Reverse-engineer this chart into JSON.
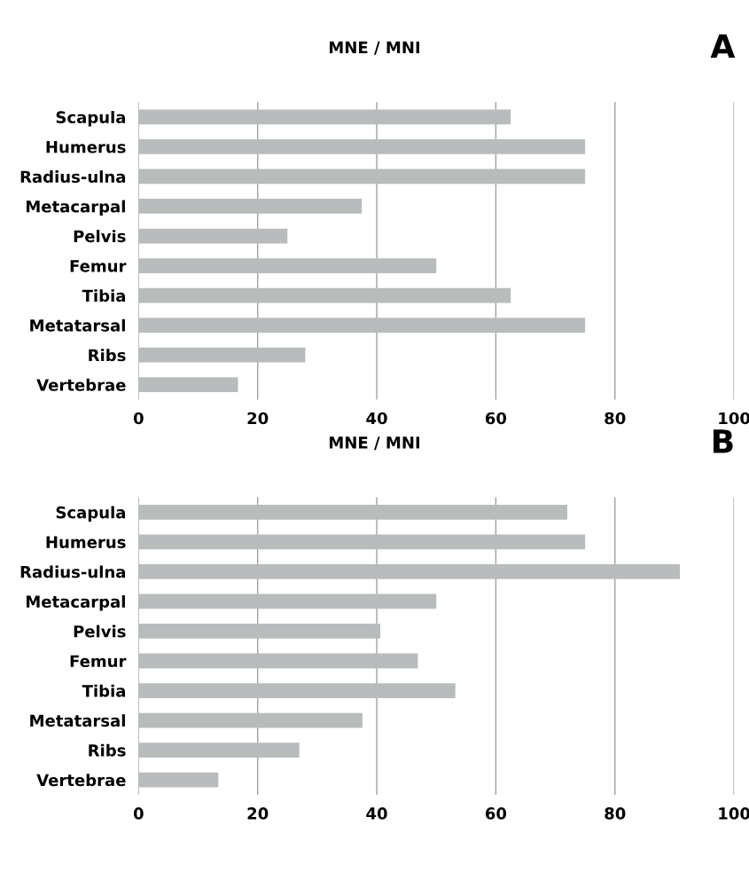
{
  "chart_data": [
    {
      "type": "bar",
      "orientation": "horizontal",
      "title": "MNE / MNI",
      "annotations": [
        "A"
      ],
      "categories": [
        "Scapula",
        "Humerus",
        "Radius-ulna",
        "Metacarpal",
        "Pelvis",
        "Femur",
        "Tibia",
        "Metatarsal",
        "Ribs",
        "Vertebrae"
      ],
      "values": [
        62.5,
        75,
        75,
        37.5,
        25,
        50,
        62.5,
        75,
        28,
        16.7
      ],
      "color": "#b9bcbc",
      "xlim": [
        0,
        100
      ],
      "xticks": [
        0,
        20,
        40,
        60,
        80,
        100
      ],
      "grid": "x"
    },
    {
      "type": "bar",
      "orientation": "horizontal",
      "title": "MNE / MNI",
      "annotations": [
        "B"
      ],
      "categories": [
        "Scapula",
        "Humerus",
        "Radius-ulna",
        "Metacarpal",
        "Pelvis",
        "Femur",
        "Tibia",
        "Metatarsal",
        "Ribs",
        "Vertebrae"
      ],
      "values": [
        72,
        75,
        90.9,
        50,
        40.6,
        46.9,
        53.2,
        37.6,
        27,
        13.4
      ],
      "color": "#b9bcbc",
      "xlim": [
        0,
        100
      ],
      "xticks": [
        0,
        20,
        40,
        60,
        80,
        100
      ],
      "grid": "x"
    }
  ]
}
